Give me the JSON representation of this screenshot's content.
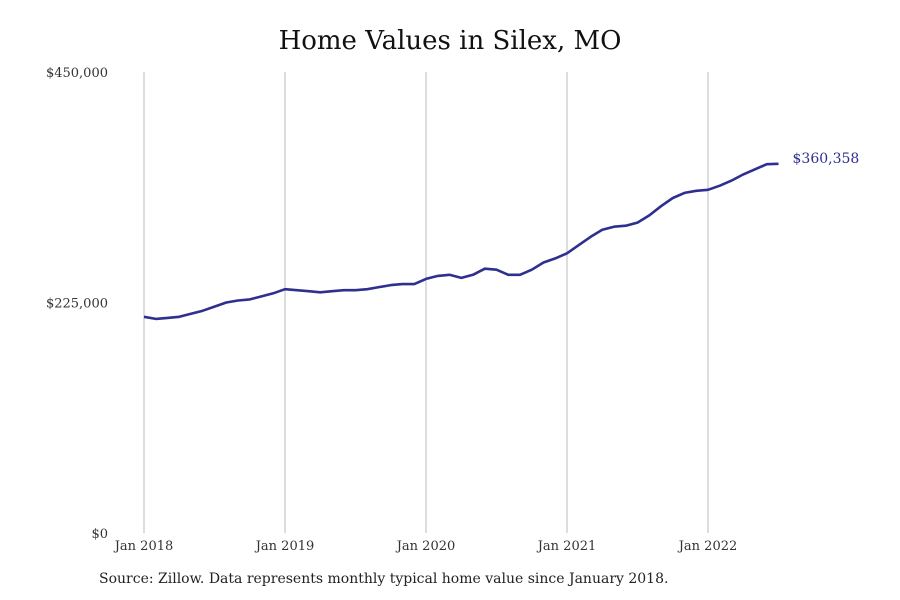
{
  "chart_data": {
    "type": "line",
    "title": "Home Values in Silex, MO",
    "xlabel": "",
    "ylabel": "",
    "ylim": [
      0,
      450000
    ],
    "y_ticks": [
      "$0",
      "$225,000",
      "$450,000"
    ],
    "y_tick_values": [
      0,
      225000,
      450000
    ],
    "x_ticks": [
      "Jan 2018",
      "Jan 2019",
      "Jan 2020",
      "Jan 2021",
      "Jan 2022"
    ],
    "x_tick_values": [
      "2018-01",
      "2019-01",
      "2020-01",
      "2021-01",
      "2022-01"
    ],
    "grid": "vertical lines at January of each year",
    "line_color": "#2f2f8f",
    "end_label": "$360,358",
    "series": [
      {
        "x": [
          "2018-01",
          "2018-02",
          "2018-03",
          "2018-04",
          "2018-05",
          "2018-06",
          "2018-07",
          "2018-08",
          "2018-09",
          "2018-10",
          "2018-11",
          "2018-12",
          "2019-01",
          "2019-02",
          "2019-03",
          "2019-04",
          "2019-05",
          "2019-06",
          "2019-07",
          "2019-08",
          "2019-09",
          "2019-10",
          "2019-11",
          "2019-12",
          "2020-01",
          "2020-02",
          "2020-03",
          "2020-04",
          "2020-05",
          "2020-06",
          "2020-07",
          "2020-08",
          "2020-09",
          "2020-10",
          "2020-11",
          "2020-12",
          "2021-01",
          "2021-02",
          "2021-03",
          "2021-04",
          "2021-05",
          "2021-06",
          "2021-07",
          "2021-08",
          "2021-09",
          "2021-10",
          "2021-11",
          "2021-12",
          "2022-01",
          "2022-02",
          "2022-03",
          "2022-04",
          "2022-05",
          "2022-06",
          "2022-07"
        ],
        "y": [
          211000,
          209000,
          210000,
          211000,
          214000,
          217000,
          221000,
          225000,
          227000,
          228000,
          231000,
          234000,
          238000,
          237000,
          236000,
          235000,
          236000,
          237000,
          237000,
          238000,
          240000,
          242000,
          243000,
          243000,
          248000,
          251000,
          252000,
          249000,
          252000,
          258000,
          257000,
          252000,
          252000,
          257000,
          264000,
          268000,
          273000,
          281000,
          289000,
          296000,
          299000,
          300000,
          303000,
          310000,
          319000,
          327000,
          332000,
          334000,
          335000,
          339000,
          344000,
          350000,
          355000,
          360000,
          360358
        ]
      }
    ]
  },
  "source_note": "Source: Zillow. Data represents monthly typical home value since January 2018."
}
